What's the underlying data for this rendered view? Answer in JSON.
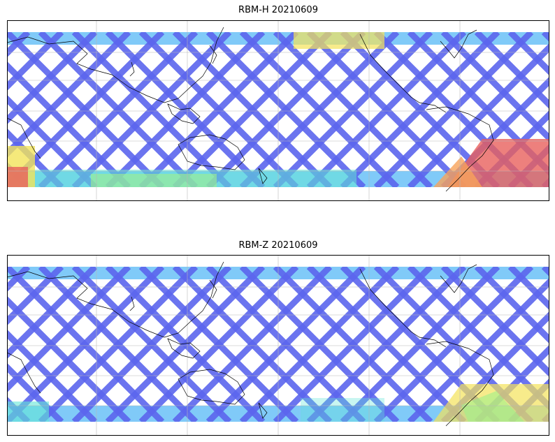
{
  "panels": [
    {
      "title": "RBM-H 20210609",
      "colors": {
        "base": "#5c66ee",
        "light": "#56b8f5",
        "cyan": "#62e6d6",
        "green": "#9ef08a",
        "yellow": "#f3e35a",
        "orange": "#f7a25a",
        "red": "#e8605c"
      }
    },
    {
      "title": "RBM-Z 20210609",
      "colors": {
        "base": "#5c66ee",
        "light": "#56b8f5",
        "cyan": "#62e6d6",
        "green": "#9ef08a",
        "yellow": "#f3e35a",
        "orange": "#f7a25a",
        "red": "#e8605c"
      }
    }
  ],
  "map": {
    "projection": "equirectangular",
    "gridlines": true,
    "coastlines": true,
    "swath_coverage": "orbital tracks between approx. 50N and 50S"
  }
}
